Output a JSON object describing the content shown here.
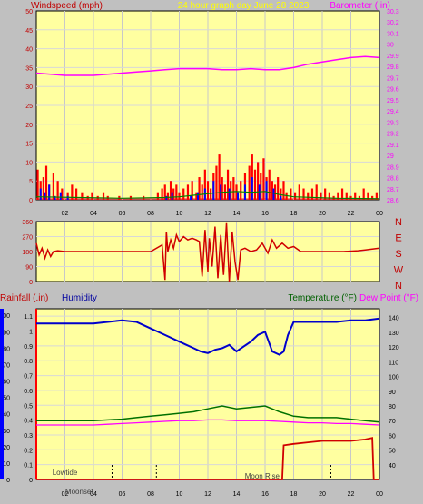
{
  "header": {
    "left_label": "Windspeed (mph)",
    "title": "24 hour graph day   June 28 2023",
    "right_label": "Barometer (.in)"
  },
  "bottom_header": {
    "rain_label": "Rainfall (.in)",
    "humidity_label": "Humidity",
    "temp_label": "Temperature (°F)",
    "dew_label": "Dew Point (°F)"
  },
  "colors": {
    "plot_bg": "#ffffa0",
    "wind": "#ff0000",
    "gust": "#0000ff",
    "avg": "#008000",
    "baro": "#ff00ff",
    "dir": "#d00000",
    "rain": "#d00000",
    "humidity": "#0000cc",
    "temp": "#007000",
    "dew": "#ff00ff",
    "title": "#ffff00",
    "label_red": "#c00000",
    "label_blue": "#0000a0",
    "label_green": "#006000"
  },
  "annotations": {
    "lowtide": "Lowtide",
    "moonset": "Moonset",
    "moonrise": "Moon Rise"
  },
  "chart_data": [
    {
      "type": "line",
      "id": "wind_baro",
      "x_ticks": [
        "02",
        "04",
        "06",
        "08",
        "10",
        "12",
        "14",
        "16",
        "18",
        "20",
        "22",
        "00"
      ],
      "y_left_ticks": [
        "0",
        "5",
        "10",
        "15",
        "20",
        "25",
        "30",
        "35",
        "40",
        "45",
        "50"
      ],
      "y_right_ticks": [
        "28.6",
        "28.7",
        "28.8",
        "28.9",
        "29",
        "29.1",
        "29.2",
        "29.3",
        "29.4",
        "29.5",
        "29.6",
        "29.7",
        "29.8",
        "29.9",
        "30",
        "30.1",
        "30.2",
        "30.3"
      ],
      "ylim_left": [
        0,
        50
      ],
      "ylim_right": [
        28.6,
        30.3
      ],
      "series": [
        {
          "axis": "right",
          "x": [
            0,
            1,
            2,
            3,
            4,
            5,
            6,
            7,
            8,
            9,
            10,
            11,
            12,
            13,
            14,
            15,
            16,
            17,
            18,
            19,
            20,
            21,
            22,
            23,
            24
          ],
          "values": [
            29.74,
            29.73,
            29.72,
            29.72,
            29.72,
            29.73,
            29.74,
            29.75,
            29.76,
            29.77,
            29.78,
            29.78,
            29.78,
            29.77,
            29.77,
            29.78,
            29.77,
            29.77,
            29.79,
            29.82,
            29.84,
            29.86,
            29.88,
            29.89,
            29.88
          ]
        },
        {
          "axis": "left",
          "x": [
            0.1,
            0.3,
            0.5,
            0.7,
            0.9,
            1.2,
            1.5,
            1.8,
            2.2,
            2.5,
            2.8,
            3.2,
            3.6,
            3.9,
            4.3,
            4.7,
            5.0,
            5.4,
            5.8,
            6.2,
            6.6,
            7.0,
            7.5,
            8.0,
            8.5,
            8.8,
            9.0,
            9.2,
            9.4,
            9.6,
            9.8,
            10.0,
            10.3,
            10.6,
            10.9,
            11.2,
            11.4,
            11.6,
            11.8,
            12.0,
            12.2,
            12.4,
            12.6,
            12.8,
            13.0,
            13.2,
            13.4,
            13.6,
            13.8,
            14.0,
            14.3,
            14.6,
            14.9,
            15.1,
            15.3,
            15.5,
            15.7,
            15.9,
            16.1,
            16.3,
            16.5,
            16.7,
            16.9,
            17.1,
            17.3,
            17.5,
            17.8,
            18.1,
            18.4,
            18.7,
            19.0,
            19.3,
            19.6,
            19.9,
            20.2,
            20.5,
            20.8,
            21.1,
            21.4,
            21.7,
            22.0,
            22.3,
            22.6,
            22.9,
            23.2,
            23.5,
            23.8
          ],
          "values": [
            8,
            5,
            6,
            9,
            4,
            7,
            5,
            3,
            2,
            4,
            3,
            2,
            1,
            2,
            1,
            2,
            1,
            0,
            1,
            0,
            1,
            0,
            1,
            0,
            2,
            3,
            4,
            2,
            5,
            3,
            4,
            2,
            3,
            4,
            5,
            2,
            6,
            4,
            8,
            5,
            3,
            7,
            9,
            12,
            6,
            4,
            8,
            5,
            6,
            4,
            5,
            7,
            9,
            12,
            8,
            10,
            7,
            11,
            6,
            8,
            5,
            4,
            6,
            3,
            5,
            2,
            3,
            2,
            4,
            3,
            2,
            3,
            4,
            2,
            3,
            2,
            1,
            2,
            3,
            2,
            1,
            2,
            1,
            3,
            2,
            1,
            2
          ]
        },
        {
          "axis": "left",
          "x": [
            0.3,
            0.6,
            0.9,
            1.3,
            1.7,
            2.2,
            2.8,
            9.1,
            9.5,
            10.8,
            11.3,
            11.8,
            12.4,
            12.9,
            13.5,
            14.1,
            14.6,
            15.1,
            15.6,
            16.1,
            16.6,
            17.1
          ],
          "values": [
            3,
            2,
            4,
            1,
            2,
            1,
            0,
            1,
            2,
            1,
            2,
            3,
            5,
            4,
            3,
            2,
            4,
            6,
            4,
            5,
            3,
            1
          ]
        },
        {
          "axis": "left",
          "x": [
            0,
            3,
            6,
            9,
            10,
            11,
            12,
            13,
            14,
            15,
            16,
            17,
            18,
            21,
            24
          ],
          "values": [
            0.8,
            0.6,
            0.4,
            0.6,
            0.8,
            1.2,
            1.6,
            2,
            2.2,
            2,
            2.2,
            1.4,
            0.8,
            0.4,
            0.3
          ]
        }
      ]
    },
    {
      "type": "line",
      "id": "wind_direction",
      "y_ticks": [
        "0",
        "90",
        "180",
        "270",
        "360"
      ],
      "y_dir_labels": [
        "N",
        "W",
        "S",
        "E",
        "N"
      ],
      "ylim": [
        0,
        360
      ],
      "series": [
        {
          "x": [
            0,
            0.2,
            0.4,
            0.6,
            0.8,
            1.0,
            1.2,
            1.5,
            2.0,
            3.0,
            4.0,
            5.0,
            6.0,
            7.0,
            8.0,
            8.8,
            9.0,
            9.1,
            9.2,
            9.4,
            9.6,
            9.8,
            10.0,
            10.3,
            10.6,
            10.9,
            11.2,
            11.4,
            11.6,
            11.8,
            11.9,
            12.0,
            12.1,
            12.3,
            12.5,
            12.7,
            12.9,
            13.1,
            13.3,
            13.5,
            13.7,
            13.9,
            14.1,
            14.3,
            14.6,
            15.0,
            15.4,
            15.8,
            16.2,
            16.5,
            16.8,
            17.2,
            17.6,
            18.0,
            18.5,
            19.5,
            20.5,
            21.5,
            22.5,
            23.0,
            23.5,
            24.0
          ],
          "values": [
            230,
            160,
            200,
            140,
            190,
            150,
            180,
            185,
            180,
            180,
            180,
            180,
            180,
            180,
            180,
            220,
            10,
            300,
            180,
            250,
            200,
            280,
            240,
            270,
            250,
            260,
            250,
            240,
            30,
            310,
            180,
            60,
            260,
            90,
            330,
            20,
            280,
            40,
            350,
            0,
            300,
            120,
            10,
            190,
            200,
            180,
            190,
            230,
            170,
            250,
            200,
            230,
            200,
            210,
            180,
            180,
            180,
            180,
            185,
            190,
            195,
            200
          ]
        }
      ]
    },
    {
      "type": "line",
      "id": "rain_temp_humidity",
      "x_ticks": [
        "02",
        "04",
        "06",
        "08",
        "10",
        "12",
        "14",
        "16",
        "18",
        "20",
        "22",
        "00"
      ],
      "y_left_ticks": [
        "0",
        "0.1",
        "0.2",
        "0.3",
        "0.4",
        "0.5",
        "0.6",
        "0.7",
        "0.8",
        "0.9",
        "1",
        "1.1"
      ],
      "y_humidity_ticks": [
        "0",
        "10",
        "20",
        "30",
        "40",
        "50",
        "60",
        "70",
        "80",
        "90",
        "100"
      ],
      "y_right_ticks": [
        "40",
        "50",
        "60",
        "70",
        "80",
        "90",
        "100",
        "110",
        "120",
        "130",
        "140"
      ],
      "ylim_left": [
        0,
        1.15
      ],
      "ylim_humidity": [
        0,
        104
      ],
      "ylim_right": [
        30,
        146
      ],
      "series": [
        {
          "x": [
            0,
            1,
            2,
            3,
            4,
            5,
            6,
            7,
            8,
            9,
            10,
            11,
            11.5,
            12,
            12.5,
            13,
            13.5,
            14,
            14.5,
            15,
            15.5,
            16,
            16.5,
            17,
            17.3,
            17.6,
            18,
            19,
            20,
            21,
            22,
            23,
            24
          ],
          "values": [
            95,
            95,
            95,
            95,
            95,
            96,
            97,
            96,
            92,
            88,
            84,
            80,
            78,
            77,
            79,
            80,
            82,
            78,
            81,
            84,
            88,
            90,
            78,
            76,
            78,
            88,
            96,
            96,
            96,
            96,
            97,
            97,
            98
          ]
        },
        {
          "x": [
            0,
            1,
            2,
            3,
            4,
            5,
            6,
            7,
            8,
            9,
            10,
            11,
            12,
            13,
            14,
            15,
            16,
            17,
            18,
            19,
            20,
            21,
            22,
            23,
            24
          ],
          "values": [
            70,
            70,
            70,
            70,
            70,
            70.5,
            71,
            72,
            73,
            74,
            75,
            76,
            78,
            80,
            78,
            79,
            80,
            76,
            73,
            72,
            72,
            72,
            71,
            70,
            69
          ]
        },
        {
          "x": [
            0,
            1,
            2,
            3,
            4,
            5,
            6,
            7,
            8,
            9,
            10,
            11,
            12,
            13,
            14,
            15,
            16,
            17,
            18,
            19,
            20,
            21,
            22,
            23,
            24
          ],
          "values": [
            67,
            67,
            67,
            67,
            67,
            67.5,
            68,
            68.5,
            69,
            69.5,
            70,
            70,
            70.5,
            70.5,
            70,
            70,
            70,
            69.5,
            69,
            68.5,
            68.5,
            68,
            68,
            67.5,
            67
          ]
        },
        {
          "x": [
            0,
            17.2,
            17.3,
            18,
            19,
            20,
            21,
            22,
            23,
            23.5,
            23.6,
            24
          ],
          "values": [
            0,
            0,
            0.23,
            0.24,
            0.25,
            0.26,
            0.26,
            0.26,
            0.27,
            0.28,
            0,
            0
          ]
        }
      ]
    }
  ]
}
